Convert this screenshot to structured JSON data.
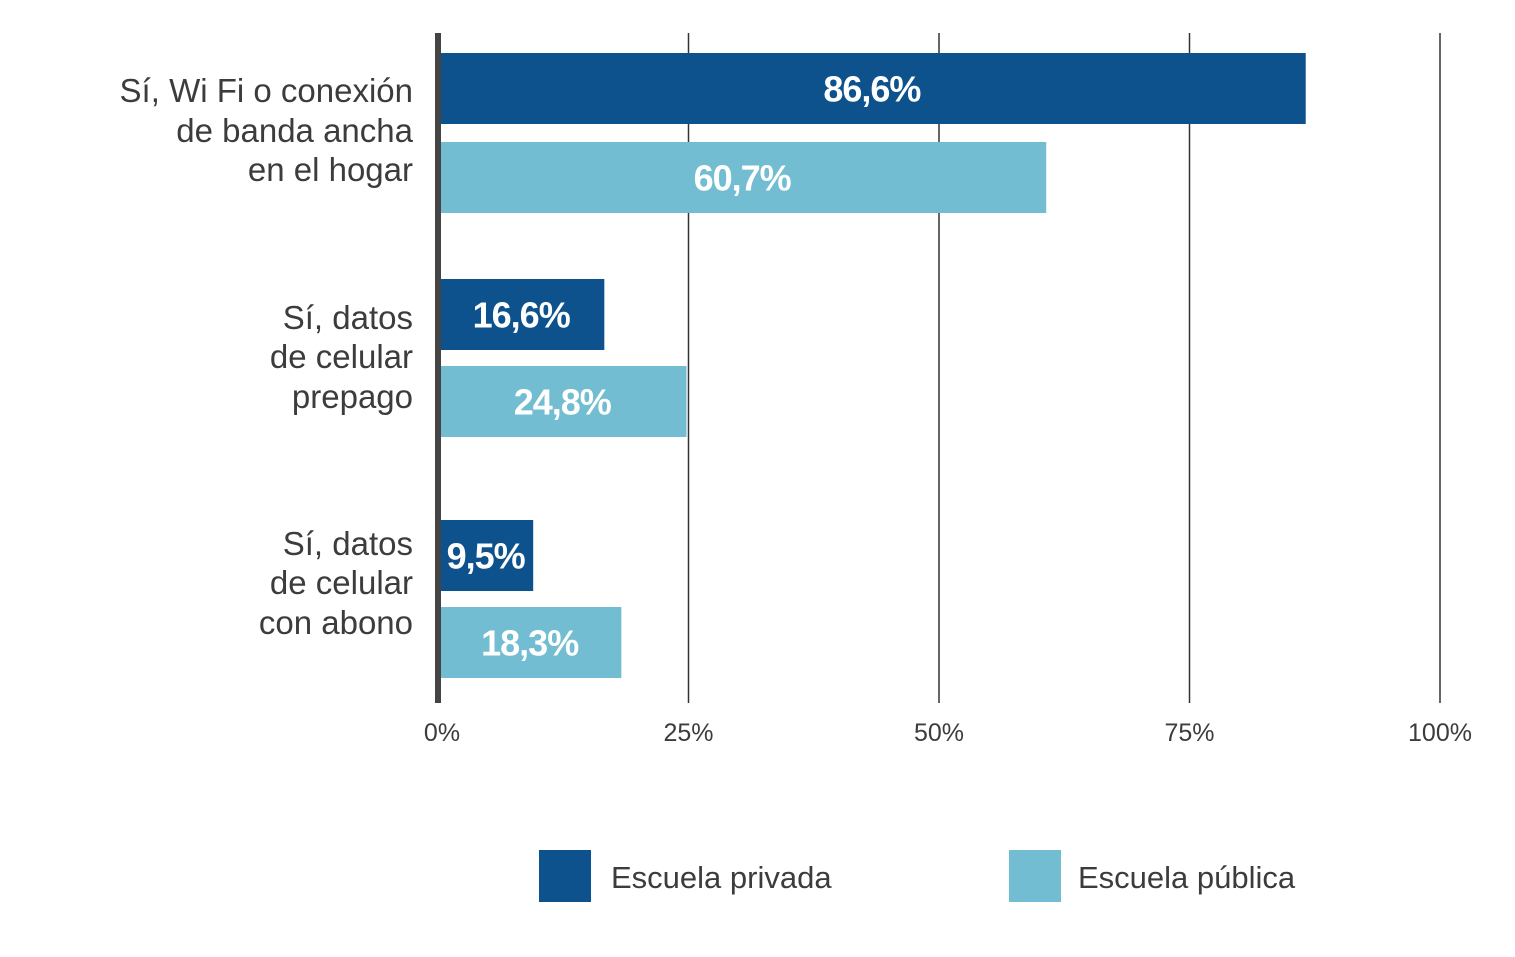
{
  "chart_data": {
    "type": "bar",
    "orientation": "horizontal",
    "title": "",
    "xlabel": "",
    "ylabel": "",
    "xlim": [
      0,
      100
    ],
    "grid": true,
    "legend_position": "bottom",
    "categories": [
      [
        "Sí, Wi Fi o conexión",
        "de banda ancha",
        "en el hogar"
      ],
      [
        "Sí, datos",
        "de celular",
        "prepago"
      ],
      [
        "Sí, datos",
        "de celular",
        "con abono"
      ]
    ],
    "x_ticks": [
      0,
      25,
      50,
      75,
      100
    ],
    "x_tick_labels": [
      "0%",
      "25%",
      "50%",
      "75%",
      "100%"
    ],
    "series": [
      {
        "name": "Escuela privada",
        "color": "#0d528c",
        "values": [
          86.6,
          16.6,
          9.5
        ],
        "labels": [
          "86,6%",
          "16,6%",
          "9,5%"
        ]
      },
      {
        "name": "Escuela pública",
        "color": "#72bdd1",
        "values": [
          60.7,
          24.8,
          18.3
        ],
        "labels": [
          "60,7%",
          "24,8%",
          "18,3%"
        ]
      }
    ]
  }
}
